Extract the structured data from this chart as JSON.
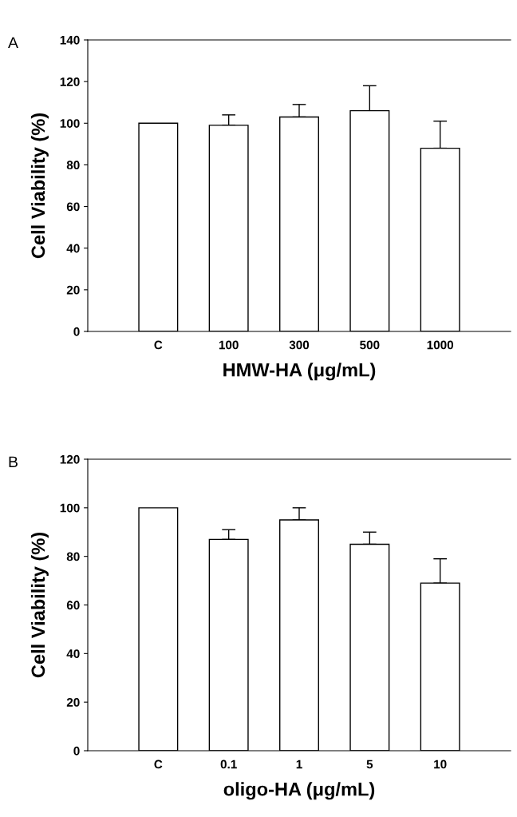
{
  "chart_data": [
    {
      "type": "bar",
      "categories": [
        "C",
        "100",
        "300",
        "500",
        "1000"
      ],
      "values": [
        100,
        99,
        103,
        106,
        88
      ],
      "errors": [
        null,
        [
          99,
          104
        ],
        [
          103,
          109
        ],
        [
          106,
          118
        ],
        [
          88,
          101
        ]
      ],
      "color": "#ffffff",
      "ylim": [
        0,
        140
      ],
      "yticks": [
        0,
        20,
        40,
        60,
        80,
        100,
        120,
        140
      ],
      "xlabel": "HMW-HA (μg/mL)",
      "ylabel": "Cell Viability (%)",
      "annotations": [
        "A"
      ],
      "grid": false,
      "legend": false
    },
    {
      "type": "bar",
      "categories": [
        "C",
        "0.1",
        "1",
        "5",
        "10"
      ],
      "values": [
        100,
        87,
        95,
        85,
        69
      ],
      "errors": [
        null,
        [
          87,
          91
        ],
        [
          95,
          100
        ],
        [
          85,
          90
        ],
        [
          69,
          79
        ]
      ],
      "color": "#ffffff",
      "ylim": [
        0,
        120
      ],
      "yticks": [
        0,
        20,
        40,
        60,
        80,
        100,
        120
      ],
      "xlabel": "oligo-HA (μg/mL)",
      "ylabel": "Cell Viability (%)",
      "annotations": [
        "B"
      ],
      "grid": false,
      "legend": false
    }
  ]
}
